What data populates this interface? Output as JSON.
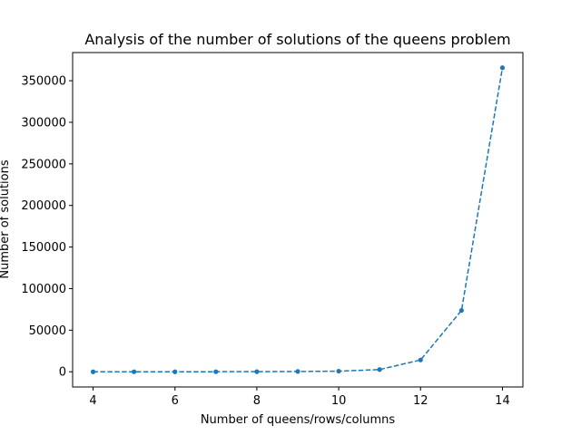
{
  "chart_data": {
    "type": "line",
    "title": "Analysis of the number of solutions of the queens problem",
    "xlabel": "Number of queens/rows/columns",
    "ylabel": "Number of solutions",
    "x": [
      4,
      5,
      6,
      7,
      8,
      9,
      10,
      11,
      12,
      13,
      14
    ],
    "series": [
      {
        "values": [
          2,
          10,
          4,
          40,
          92,
          352,
          724,
          2680,
          14200,
          73712,
          365596
        ],
        "color": "#1f77b4",
        "line_style": "dashed",
        "marker": "circle"
      }
    ],
    "xlim": [
      3.5,
      14.5
    ],
    "ylim": [
      -18278,
      383874
    ],
    "xticks": [
      4,
      6,
      8,
      10,
      12,
      14
    ],
    "yticks": [
      0,
      50000,
      100000,
      150000,
      200000,
      250000,
      300000,
      350000
    ],
    "xtick_labels": [
      "4",
      "6",
      "8",
      "10",
      "12",
      "14"
    ],
    "ytick_labels": [
      "0",
      "50000",
      "100000",
      "150000",
      "200000",
      "250000",
      "300000",
      "350000"
    ],
    "grid": false,
    "legend": "none"
  }
}
